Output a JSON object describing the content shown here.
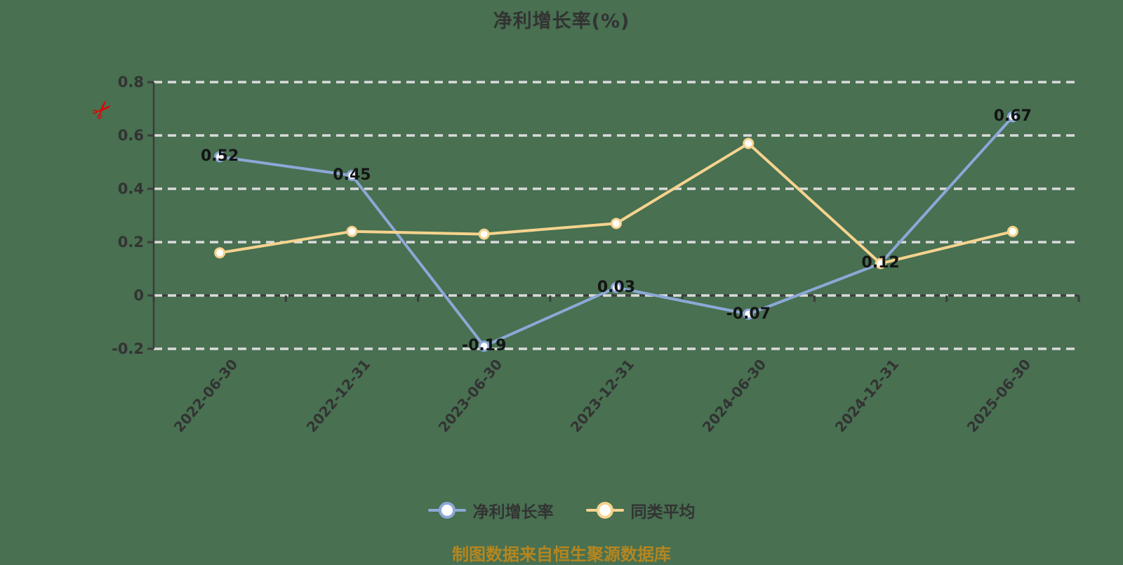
{
  "title": "净利增长率(%)",
  "source_note": "制图数据来自恒生聚源数据库",
  "decor": {
    "scissors_icon": "✂",
    "scissors_color": "#E60000"
  },
  "legend": {
    "items": [
      {
        "label": "净利增长率",
        "color": "#8CA8D6"
      },
      {
        "label": "同类平均",
        "color": "#F6D38E"
      }
    ]
  },
  "colors": {
    "background": "#487051",
    "grid": "#DBDBDB",
    "axis": "#3C3C3C",
    "tick_text": "#333333",
    "value_label": "#141414",
    "source_note": "#B5861F"
  },
  "chart_data": {
    "type": "line",
    "title": "净利增长率(%)",
    "categories": [
      "2022-06-30",
      "2022-12-31",
      "2023-06-30",
      "2023-12-31",
      "2024-06-30",
      "2024-12-31",
      "2025-06-30"
    ],
    "series": [
      {
        "name": "净利增长率",
        "color": "#8CA8D6",
        "values": [
          0.52,
          0.45,
          -0.19,
          0.03,
          -0.07,
          0.12,
          0.67
        ],
        "data_labels": [
          "0.52",
          "0.45",
          "-0.19",
          "0.03",
          "-0.07",
          "0.12",
          "0.67"
        ]
      },
      {
        "name": "同类平均",
        "color": "#F6D38E",
        "values": [
          0.16,
          0.24,
          0.23,
          0.27,
          0.57,
          0.12,
          0.24
        ],
        "data_labels": []
      }
    ],
    "ylim": [
      -0.2,
      0.8
    ],
    "yticks": [
      {
        "value": 0.8,
        "label": "0.8"
      },
      {
        "value": 0.6,
        "label": "0.6"
      },
      {
        "value": 0.4,
        "label": "0.4"
      },
      {
        "value": 0.2,
        "label": "0.2"
      },
      {
        "value": 0,
        "label": "0"
      },
      {
        "value": -0.2,
        "label": "-0.2"
      }
    ],
    "grid": "dashed-horizontal",
    "legend_position": "bottom",
    "x_label_rotation": 50
  }
}
